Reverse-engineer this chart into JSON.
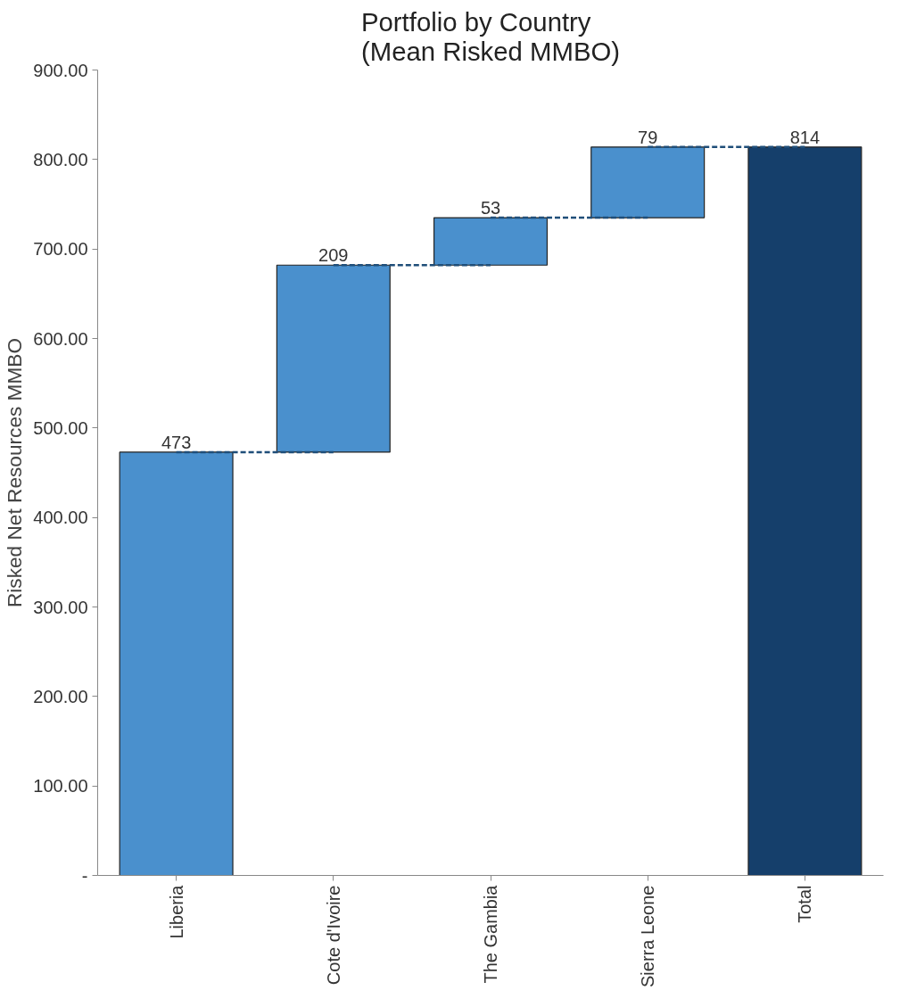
{
  "chart_data": {
    "type": "bar",
    "title": "Portfolio by Country\n(Mean Risked MMBO)",
    "ylabel": "Risked Net Resources MMBO",
    "categories": [
      "Liberia",
      "Cote d'Ivoire",
      "The Gambia",
      "Sierra Leone",
      "Total"
    ],
    "values": [
      473,
      209,
      53,
      79,
      814
    ],
    "base": [
      0,
      473,
      682,
      735,
      0
    ],
    "colors": [
      "#4a90cd",
      "#4a90cd",
      "#4a90cd",
      "#4a90cd",
      "#153f6b"
    ],
    "data_labels": true,
    "ylim": [
      0,
      900
    ],
    "yticks": [
      {
        "value": 0,
        "label": "-"
      },
      {
        "value": 100,
        "label": "100.00"
      },
      {
        "value": 200,
        "label": "200.00"
      },
      {
        "value": 300,
        "label": "300.00"
      },
      {
        "value": 400,
        "label": "400.00"
      },
      {
        "value": 500,
        "label": "500.00"
      },
      {
        "value": 600,
        "label": "600.00"
      },
      {
        "value": 700,
        "label": "700.00"
      },
      {
        "value": 800,
        "label": "800.00"
      },
      {
        "value": 900,
        "label": "900.00"
      }
    ],
    "grid": false
  }
}
